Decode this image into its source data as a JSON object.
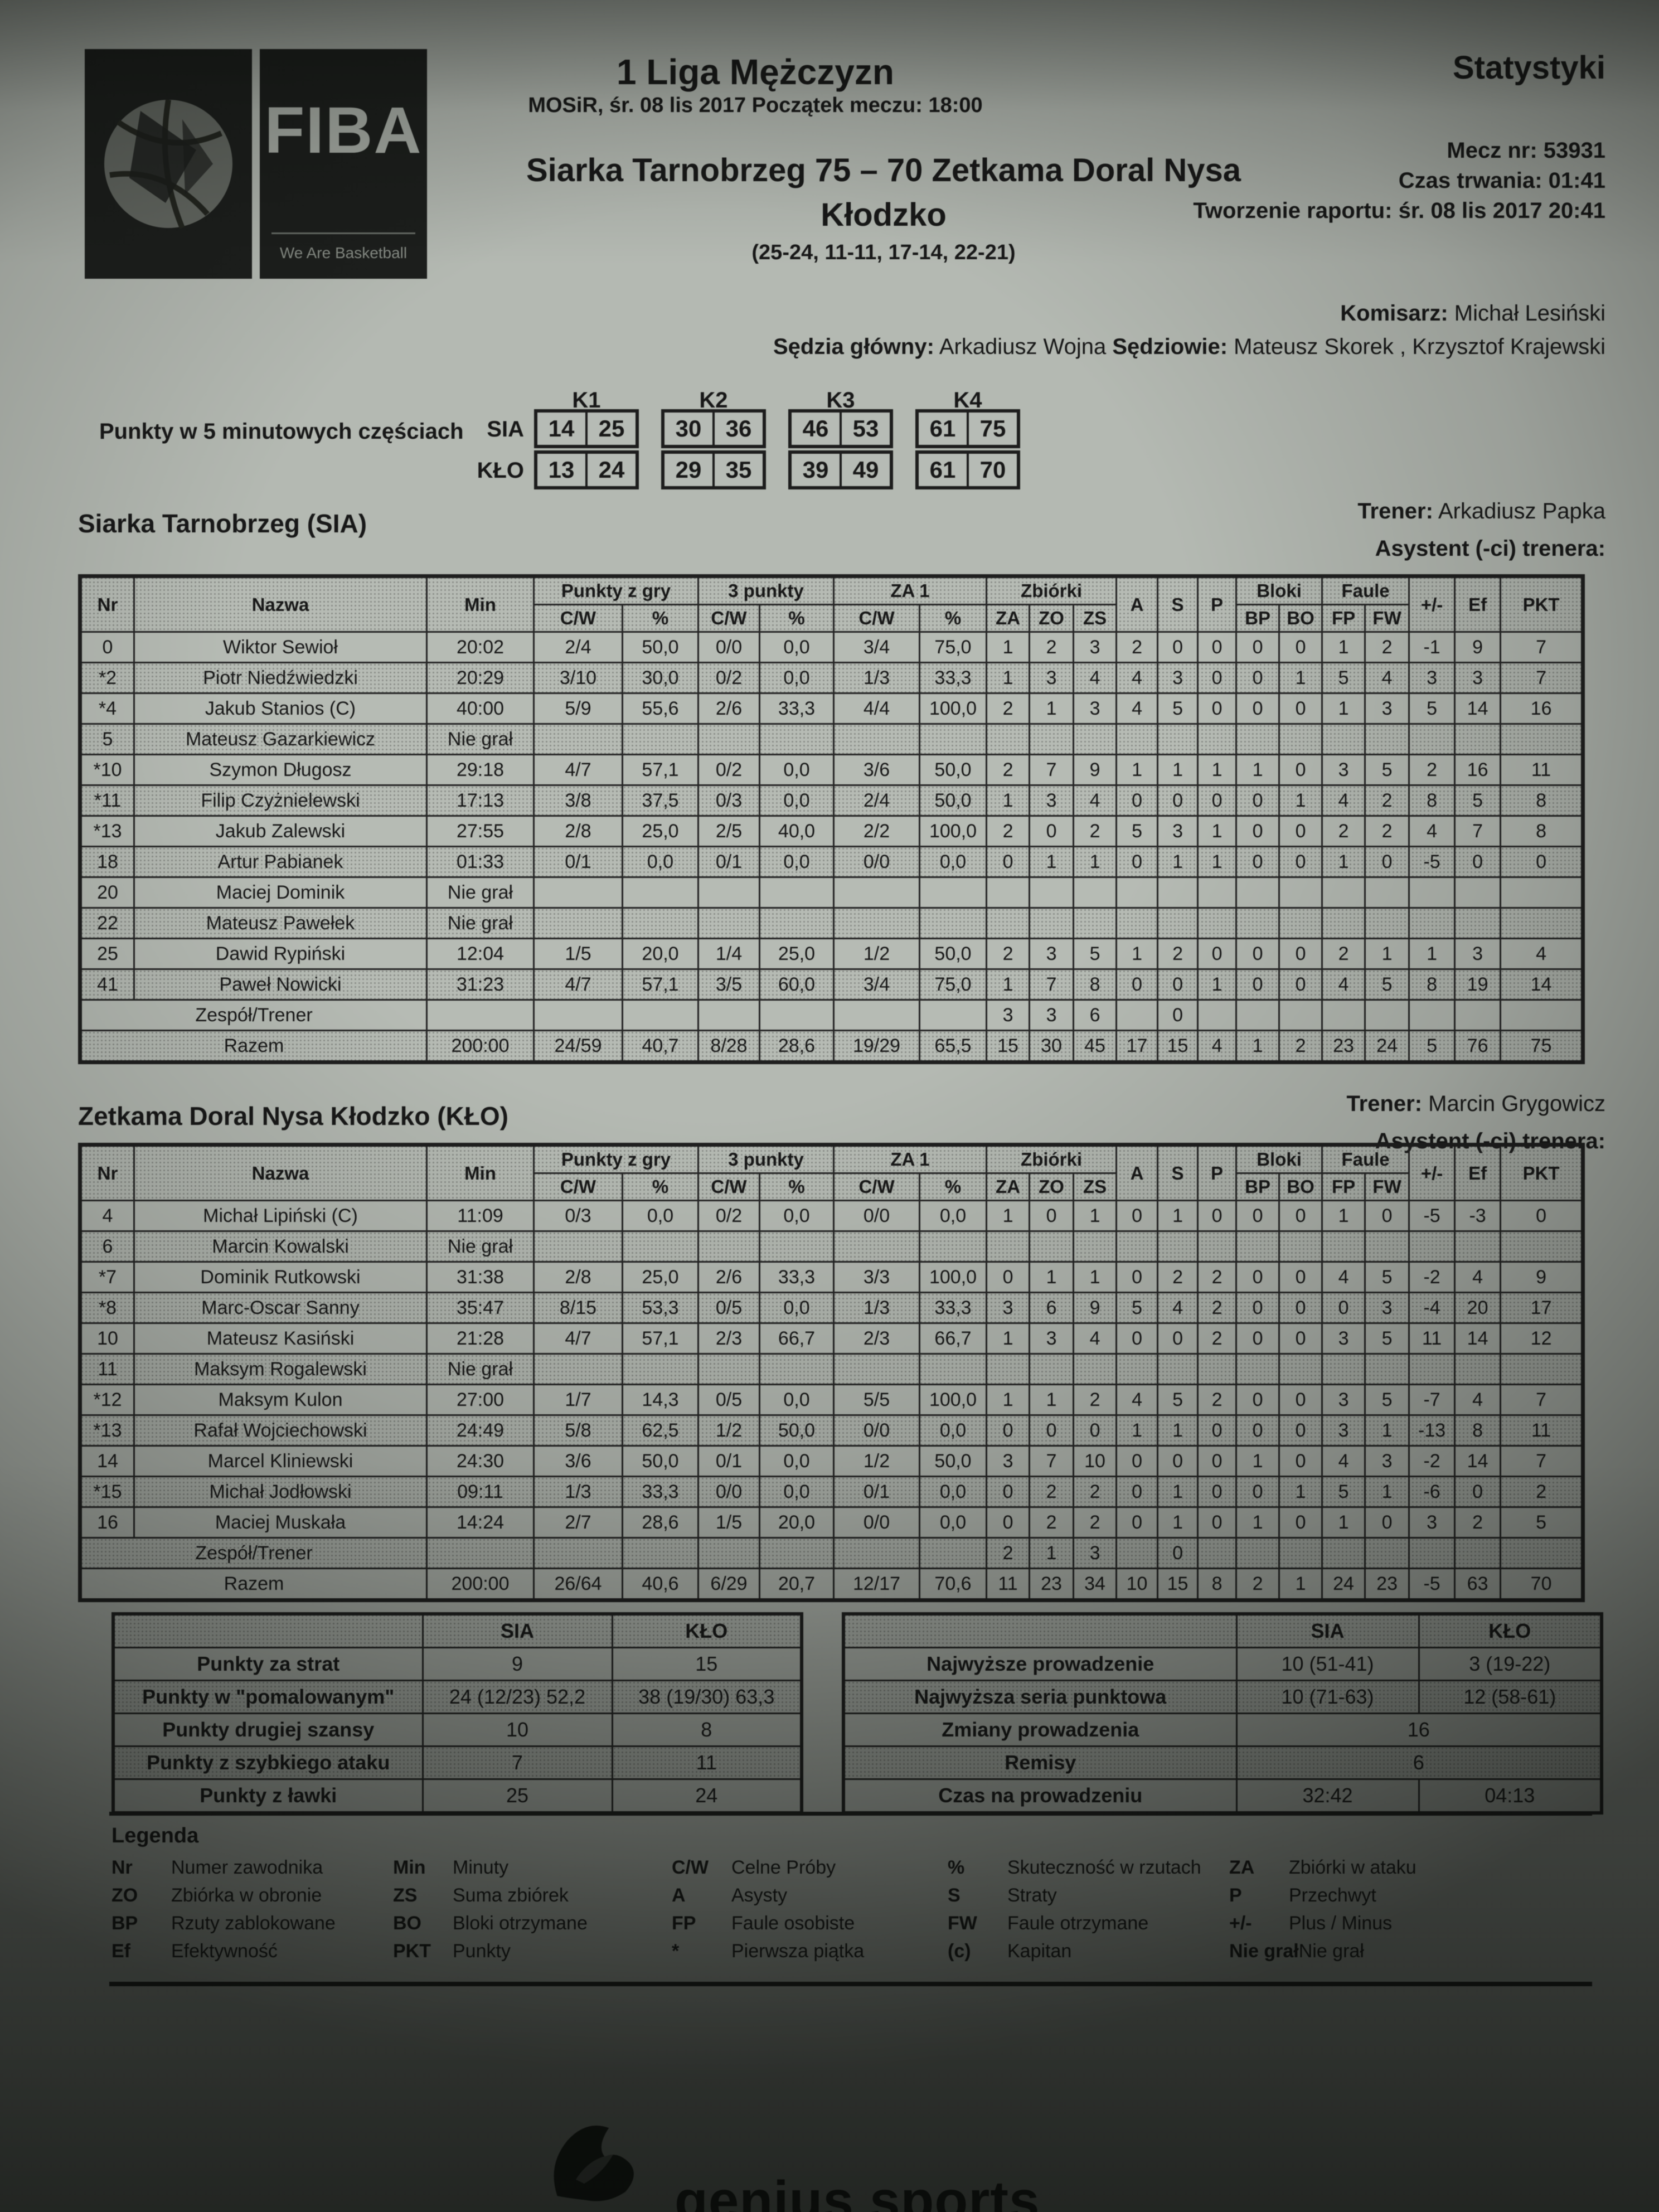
{
  "colors": {
    "paper": "#b4b9b2",
    "ink": "#181818"
  },
  "fiba": {
    "wordmark": "FIBA",
    "tagline": "We Are Basketball"
  },
  "header": {
    "league": "1 Liga Mężczyzn",
    "venue_line": "MOSiR, śr. 08 lis 2017 Początek meczu: 18:00",
    "score_main": "Siarka Tarnobrzeg 75 – 70 Zetkama Doral Nysa",
    "score_city": "Kłodzko",
    "quarters_summary": "(25-24, 11-11, 17-14, 22-21)",
    "stats_title": "Statystyki",
    "match_no": "Mecz nr: 53931",
    "duration": "Czas trwania: 01:41",
    "report_created": "Tworzenie raportu: śr. 08 lis 2017 20:41",
    "commissioner_label": "Komisarz:",
    "commissioner_name": " Michał Lesiński",
    "referee_label_1": "Sędzia główny:",
    "referee_name_1": " Arkadiusz Wojna ",
    "referee_label_2": "Sędziowie:",
    "referee_names_2": " Mateusz Skorek , Krzysztof Krajewski"
  },
  "quarters": {
    "label": "Punkty w 5 minutowych częściach",
    "cols": [
      "K1",
      "K2",
      "K3",
      "K4"
    ],
    "rows": [
      {
        "team": "SIA",
        "values": [
          [
            "14",
            "25"
          ],
          [
            "30",
            "36"
          ],
          [
            "46",
            "53"
          ],
          [
            "61",
            "75"
          ]
        ]
      },
      {
        "team": "KŁO",
        "values": [
          [
            "13",
            "24"
          ],
          [
            "29",
            "35"
          ],
          [
            "39",
            "49"
          ],
          [
            "61",
            "70"
          ]
        ]
      }
    ]
  },
  "table_header": {
    "nr": "Nr",
    "nazwa": "Nazwa",
    "min": "Min",
    "g_fg": "Punkty z gry",
    "g_tp": "3 punkty",
    "g_ft": "ZA 1",
    "g_reb": "Zbiórki",
    "g_blk": "Bloki",
    "g_foul": "Faule",
    "cw": "C/W",
    "pct": "%",
    "za": "ZA",
    "zo": "ZO",
    "zs": "ZS",
    "a": "A",
    "s": "S",
    "p": "P",
    "bp": "BP",
    "bo": "BO",
    "fp": "FP",
    "fw": "FW",
    "pm": "+/-",
    "ef": "Ef",
    "pkt": "PKT"
  },
  "teams": [
    {
      "heading": "Siarka Tarnobrzeg (SIA)",
      "trener_label": "Trener:",
      "trener_name": " Arkadiusz Papka",
      "asystent": "Asystent (-ci) trenera:",
      "players": [
        {
          "nr": "0",
          "name": "Wiktor Sewioł",
          "min": "20:02",
          "fg": "2/4",
          "fgp": "50,0",
          "tp": "0/0",
          "tpp": "0,0",
          "ft": "3/4",
          "ftp": "75,0",
          "za": "1",
          "zo": "2",
          "zs": "3",
          "a": "2",
          "s": "0",
          "p": "0",
          "bp": "0",
          "bo": "0",
          "fp": "1",
          "fw": "2",
          "pm": "-1",
          "ef": "9",
          "pkt": "7"
        },
        {
          "nr": "*2",
          "name": "Piotr Niedźwiedzki",
          "min": "20:29",
          "fg": "3/10",
          "fgp": "30,0",
          "tp": "0/2",
          "tpp": "0,0",
          "ft": "1/3",
          "ftp": "33,3",
          "za": "1",
          "zo": "3",
          "zs": "4",
          "a": "4",
          "s": "3",
          "p": "0",
          "bp": "0",
          "bo": "1",
          "fp": "5",
          "fw": "4",
          "pm": "3",
          "ef": "3",
          "pkt": "7"
        },
        {
          "nr": "*4",
          "name": "Jakub Stanios (C)",
          "min": "40:00",
          "fg": "5/9",
          "fgp": "55,6",
          "tp": "2/6",
          "tpp": "33,3",
          "ft": "4/4",
          "ftp": "100,0",
          "za": "2",
          "zo": "1",
          "zs": "3",
          "a": "4",
          "s": "5",
          "p": "0",
          "bp": "0",
          "bo": "0",
          "fp": "1",
          "fw": "3",
          "pm": "5",
          "ef": "14",
          "pkt": "16"
        },
        {
          "nr": "5",
          "name": "Mateusz Gazarkiewicz",
          "dnp": "Nie grał"
        },
        {
          "nr": "*10",
          "name": "Szymon Długosz",
          "min": "29:18",
          "fg": "4/7",
          "fgp": "57,1",
          "tp": "0/2",
          "tpp": "0,0",
          "ft": "3/6",
          "ftp": "50,0",
          "za": "2",
          "zo": "7",
          "zs": "9",
          "a": "1",
          "s": "1",
          "p": "1",
          "bp": "1",
          "bo": "0",
          "fp": "3",
          "fw": "5",
          "pm": "2",
          "ef": "16",
          "pkt": "11"
        },
        {
          "nr": "*11",
          "name": "Filip Czyżnielewski",
          "min": "17:13",
          "fg": "3/8",
          "fgp": "37,5",
          "tp": "0/3",
          "tpp": "0,0",
          "ft": "2/4",
          "ftp": "50,0",
          "za": "1",
          "zo": "3",
          "zs": "4",
          "a": "0",
          "s": "0",
          "p": "0",
          "bp": "0",
          "bo": "1",
          "fp": "4",
          "fw": "2",
          "pm": "8",
          "ef": "5",
          "pkt": "8"
        },
        {
          "nr": "*13",
          "name": "Jakub Zalewski",
          "min": "27:55",
          "fg": "2/8",
          "fgp": "25,0",
          "tp": "2/5",
          "tpp": "40,0",
          "ft": "2/2",
          "ftp": "100,0",
          "za": "2",
          "zo": "0",
          "zs": "2",
          "a": "5",
          "s": "3",
          "p": "1",
          "bp": "0",
          "bo": "0",
          "fp": "2",
          "fw": "2",
          "pm": "4",
          "ef": "7",
          "pkt": "8"
        },
        {
          "nr": "18",
          "name": "Artur Pabianek",
          "min": "01:33",
          "fg": "0/1",
          "fgp": "0,0",
          "tp": "0/1",
          "tpp": "0,0",
          "ft": "0/0",
          "ftp": "0,0",
          "za": "0",
          "zo": "1",
          "zs": "1",
          "a": "0",
          "s": "1",
          "p": "1",
          "bp": "0",
          "bo": "0",
          "fp": "1",
          "fw": "0",
          "pm": "-5",
          "ef": "0",
          "pkt": "0"
        },
        {
          "nr": "20",
          "name": "Maciej Dominik",
          "dnp": "Nie grał"
        },
        {
          "nr": "22",
          "name": "Mateusz Pawełek",
          "dnp": "Nie grał"
        },
        {
          "nr": "25",
          "name": "Dawid Rypiński",
          "min": "12:04",
          "fg": "1/5",
          "fgp": "20,0",
          "tp": "1/4",
          "tpp": "25,0",
          "ft": "1/2",
          "ftp": "50,0",
          "za": "2",
          "zo": "3",
          "zs": "5",
          "a": "1",
          "s": "2",
          "p": "0",
          "bp": "0",
          "bo": "0",
          "fp": "2",
          "fw": "1",
          "pm": "1",
          "ef": "3",
          "pkt": "4"
        },
        {
          "nr": "41",
          "name": "Paweł Nowicki",
          "min": "31:23",
          "fg": "4/7",
          "fgp": "57,1",
          "tp": "3/5",
          "tpp": "60,0",
          "ft": "3/4",
          "ftp": "75,0",
          "za": "1",
          "zo": "7",
          "zs": "8",
          "a": "0",
          "s": "0",
          "p": "1",
          "bp": "0",
          "bo": "0",
          "fp": "4",
          "fw": "5",
          "pm": "8",
          "ef": "19",
          "pkt": "14"
        }
      ],
      "team_row": {
        "label": "Zespół/Trener",
        "za": "3",
        "zo": "3",
        "zs": "6",
        "s": "0"
      },
      "total_row": {
        "label": "Razem",
        "min": "200:00",
        "fg": "24/59",
        "fgp": "40,7",
        "tp": "8/28",
        "tpp": "28,6",
        "ft": "19/29",
        "ftp": "65,5",
        "za": "15",
        "zo": "30",
        "zs": "45",
        "a": "17",
        "s": "15",
        "p": "4",
        "bp": "1",
        "bo": "2",
        "fp": "23",
        "fw": "24",
        "pm": "5",
        "ef": "76",
        "pkt": "75"
      }
    },
    {
      "heading": "Zetkama Doral Nysa Kłodzko (KŁO)",
      "trener_label": "Trener:",
      "trener_name": " Marcin Grygowicz",
      "asystent": "Asystent (-ci) trenera:",
      "players": [
        {
          "nr": "4",
          "name": "Michał Lipiński (C)",
          "min": "11:09",
          "fg": "0/3",
          "fgp": "0,0",
          "tp": "0/2",
          "tpp": "0,0",
          "ft": "0/0",
          "ftp": "0,0",
          "za": "1",
          "zo": "0",
          "zs": "1",
          "a": "0",
          "s": "1",
          "p": "0",
          "bp": "0",
          "bo": "0",
          "fp": "1",
          "fw": "0",
          "pm": "-5",
          "ef": "-3",
          "pkt": "0"
        },
        {
          "nr": "6",
          "name": "Marcin Kowalski",
          "dnp": "Nie grał"
        },
        {
          "nr": "*7",
          "name": "Dominik Rutkowski",
          "min": "31:38",
          "fg": "2/8",
          "fgp": "25,0",
          "tp": "2/6",
          "tpp": "33,3",
          "ft": "3/3",
          "ftp": "100,0",
          "za": "0",
          "zo": "1",
          "zs": "1",
          "a": "0",
          "s": "2",
          "p": "2",
          "bp": "0",
          "bo": "0",
          "fp": "4",
          "fw": "5",
          "pm": "-2",
          "ef": "4",
          "pkt": "9"
        },
        {
          "nr": "*8",
          "name": "Marc-Oscar Sanny",
          "min": "35:47",
          "fg": "8/15",
          "fgp": "53,3",
          "tp": "0/5",
          "tpp": "0,0",
          "ft": "1/3",
          "ftp": "33,3",
          "za": "3",
          "zo": "6",
          "zs": "9",
          "a": "5",
          "s": "4",
          "p": "2",
          "bp": "0",
          "bo": "0",
          "fp": "0",
          "fw": "3",
          "pm": "-4",
          "ef": "20",
          "pkt": "17"
        },
        {
          "nr": "10",
          "name": "Mateusz Kasiński",
          "min": "21:28",
          "fg": "4/7",
          "fgp": "57,1",
          "tp": "2/3",
          "tpp": "66,7",
          "ft": "2/3",
          "ftp": "66,7",
          "za": "1",
          "zo": "3",
          "zs": "4",
          "a": "0",
          "s": "0",
          "p": "2",
          "bp": "0",
          "bo": "0",
          "fp": "3",
          "fw": "5",
          "pm": "11",
          "ef": "14",
          "pkt": "12"
        },
        {
          "nr": "11",
          "name": "Maksym Rogalewski",
          "dnp": "Nie grał"
        },
        {
          "nr": "*12",
          "name": "Maksym Kulon",
          "min": "27:00",
          "fg": "1/7",
          "fgp": "14,3",
          "tp": "0/5",
          "tpp": "0,0",
          "ft": "5/5",
          "ftp": "100,0",
          "za": "1",
          "zo": "1",
          "zs": "2",
          "a": "4",
          "s": "5",
          "p": "2",
          "bp": "0",
          "bo": "0",
          "fp": "3",
          "fw": "5",
          "pm": "-7",
          "ef": "4",
          "pkt": "7"
        },
        {
          "nr": "*13",
          "name": "Rafał Wojciechowski",
          "min": "24:49",
          "fg": "5/8",
          "fgp": "62,5",
          "tp": "1/2",
          "tpp": "50,0",
          "ft": "0/0",
          "ftp": "0,0",
          "za": "0",
          "zo": "0",
          "zs": "0",
          "a": "1",
          "s": "1",
          "p": "0",
          "bp": "0",
          "bo": "0",
          "fp": "3",
          "fw": "1",
          "pm": "-13",
          "ef": "8",
          "pkt": "11"
        },
        {
          "nr": "14",
          "name": "Marcel Kliniewski",
          "min": "24:30",
          "fg": "3/6",
          "fgp": "50,0",
          "tp": "0/1",
          "tpp": "0,0",
          "ft": "1/2",
          "ftp": "50,0",
          "za": "3",
          "zo": "7",
          "zs": "10",
          "a": "0",
          "s": "0",
          "p": "0",
          "bp": "1",
          "bo": "0",
          "fp": "4",
          "fw": "3",
          "pm": "-2",
          "ef": "14",
          "pkt": "7"
        },
        {
          "nr": "*15",
          "name": "Michał Jodłowski",
          "min": "09:11",
          "fg": "1/3",
          "fgp": "33,3",
          "tp": "0/0",
          "tpp": "0,0",
          "ft": "0/1",
          "ftp": "0,0",
          "za": "0",
          "zo": "2",
          "zs": "2",
          "a": "0",
          "s": "1",
          "p": "0",
          "bp": "0",
          "bo": "1",
          "fp": "5",
          "fw": "1",
          "pm": "-6",
          "ef": "0",
          "pkt": "2"
        },
        {
          "nr": "16",
          "name": "Maciej Muskała",
          "min": "14:24",
          "fg": "2/7",
          "fgp": "28,6",
          "tp": "1/5",
          "tpp": "20,0",
          "ft": "0/0",
          "ftp": "0,0",
          "za": "0",
          "zo": "2",
          "zs": "2",
          "a": "0",
          "s": "1",
          "p": "0",
          "bp": "1",
          "bo": "0",
          "fp": "1",
          "fw": "0",
          "pm": "3",
          "ef": "2",
          "pkt": "5"
        }
      ],
      "team_row": {
        "label": "Zespół/Trener",
        "za": "2",
        "zo": "1",
        "zs": "3",
        "s": "0"
      },
      "total_row": {
        "label": "Razem",
        "min": "200:00",
        "fg": "26/64",
        "fgp": "40,6",
        "tp": "6/29",
        "tpp": "20,7",
        "ft": "12/17",
        "ftp": "70,6",
        "za": "11",
        "zo": "23",
        "zs": "34",
        "a": "10",
        "s": "15",
        "p": "8",
        "bp": "2",
        "bo": "1",
        "fp": "24",
        "fw": "23",
        "pm": "-5",
        "ef": "63",
        "pkt": "70"
      }
    }
  ],
  "summary_left": {
    "col_sia": "SIA",
    "col_klo": "KŁO",
    "rows": [
      {
        "label": "Punkty za strat",
        "sia": "9",
        "klo": "15"
      },
      {
        "label": "Punkty w \"pomalowanym\"",
        "sia": "24 (12/23) 52,2",
        "klo": "38 (19/30) 63,3"
      },
      {
        "label": "Punkty drugiej szansy",
        "sia": "10",
        "klo": "8"
      },
      {
        "label": "Punkty z szybkiego ataku",
        "sia": "7",
        "klo": "11"
      },
      {
        "label": "Punkty z ławki",
        "sia": "25",
        "klo": "24"
      }
    ]
  },
  "summary_right": {
    "col_sia": "SIA",
    "col_klo": "KŁO",
    "rows": [
      {
        "label": "Najwyższe prowadzenie",
        "sia": "10 (51-41)",
        "klo": "3 (19-22)"
      },
      {
        "label": "Najwyższa seria punktowa",
        "sia": "10 (71-63)",
        "klo": "12 (58-61)"
      },
      {
        "label": "Zmiany prowadzenia",
        "span": "16"
      },
      {
        "label": "Remisy",
        "span": "6"
      },
      {
        "label": "Czas na prowadzeniu",
        "sia": "32:42",
        "klo": "04:13"
      }
    ]
  },
  "legend": {
    "title": "Legenda",
    "entries": [
      {
        "abbr": "Nr",
        "desc": "Numer zawodnika"
      },
      {
        "abbr": "Min",
        "desc": "Minuty"
      },
      {
        "abbr": "C/W",
        "desc": "Celne Próby"
      },
      {
        "abbr": "%",
        "desc": "Skuteczność w rzutach"
      },
      {
        "abbr": "ZA",
        "desc": "Zbiórki w ataku"
      },
      {
        "abbr": "ZO",
        "desc": "Zbiórka w obronie"
      },
      {
        "abbr": "ZS",
        "desc": "Suma zbiórek"
      },
      {
        "abbr": "A",
        "desc": "Asysty"
      },
      {
        "abbr": "S",
        "desc": "Straty"
      },
      {
        "abbr": "P",
        "desc": "Przechwyt"
      },
      {
        "abbr": "BP",
        "desc": "Rzuty zablokowane"
      },
      {
        "abbr": "BO",
        "desc": "Bloki otrzymane"
      },
      {
        "abbr": "FP",
        "desc": "Faule osobiste"
      },
      {
        "abbr": "FW",
        "desc": "Faule otrzymane"
      },
      {
        "abbr": "+/-",
        "desc": "Plus / Minus"
      },
      {
        "abbr": "Ef",
        "desc": "Efektywność"
      },
      {
        "abbr": "PKT",
        "desc": "Punkty"
      },
      {
        "abbr": "*",
        "desc": "Pierwsza piątka"
      },
      {
        "abbr": "(c)",
        "desc": "Kapitan"
      },
      {
        "abbr": "Nie grał",
        "desc": "Nie grał"
      }
    ]
  },
  "footer": {
    "logo_text": "genius sports"
  }
}
